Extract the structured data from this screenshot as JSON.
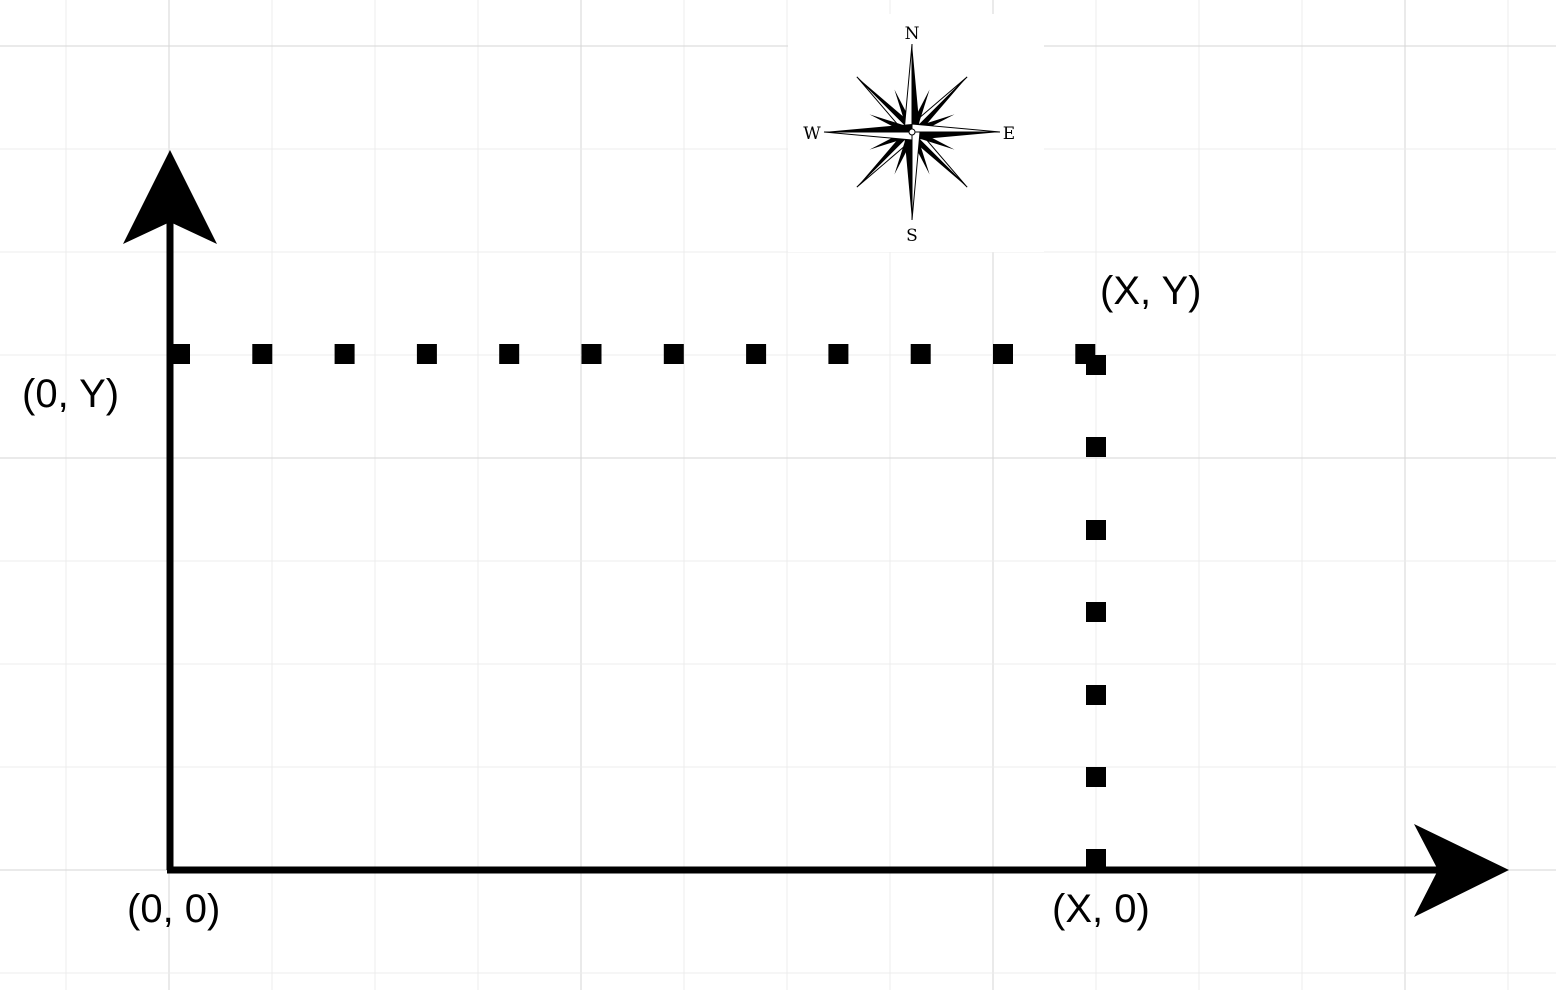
{
  "diagram": {
    "labels": {
      "origin": "(0, 0)",
      "y_point": "(0, Y)",
      "x_point": "(X, 0)",
      "xy_point": "(X, Y)"
    },
    "compass": {
      "icon": "compass-rose-icon",
      "north": "N",
      "south": "S",
      "east": "E",
      "west": "W"
    },
    "colors": {
      "background": "#ffffff",
      "grid_minor": "#ececec",
      "grid_major": "#d6d6d6",
      "ink": "#000000"
    }
  }
}
